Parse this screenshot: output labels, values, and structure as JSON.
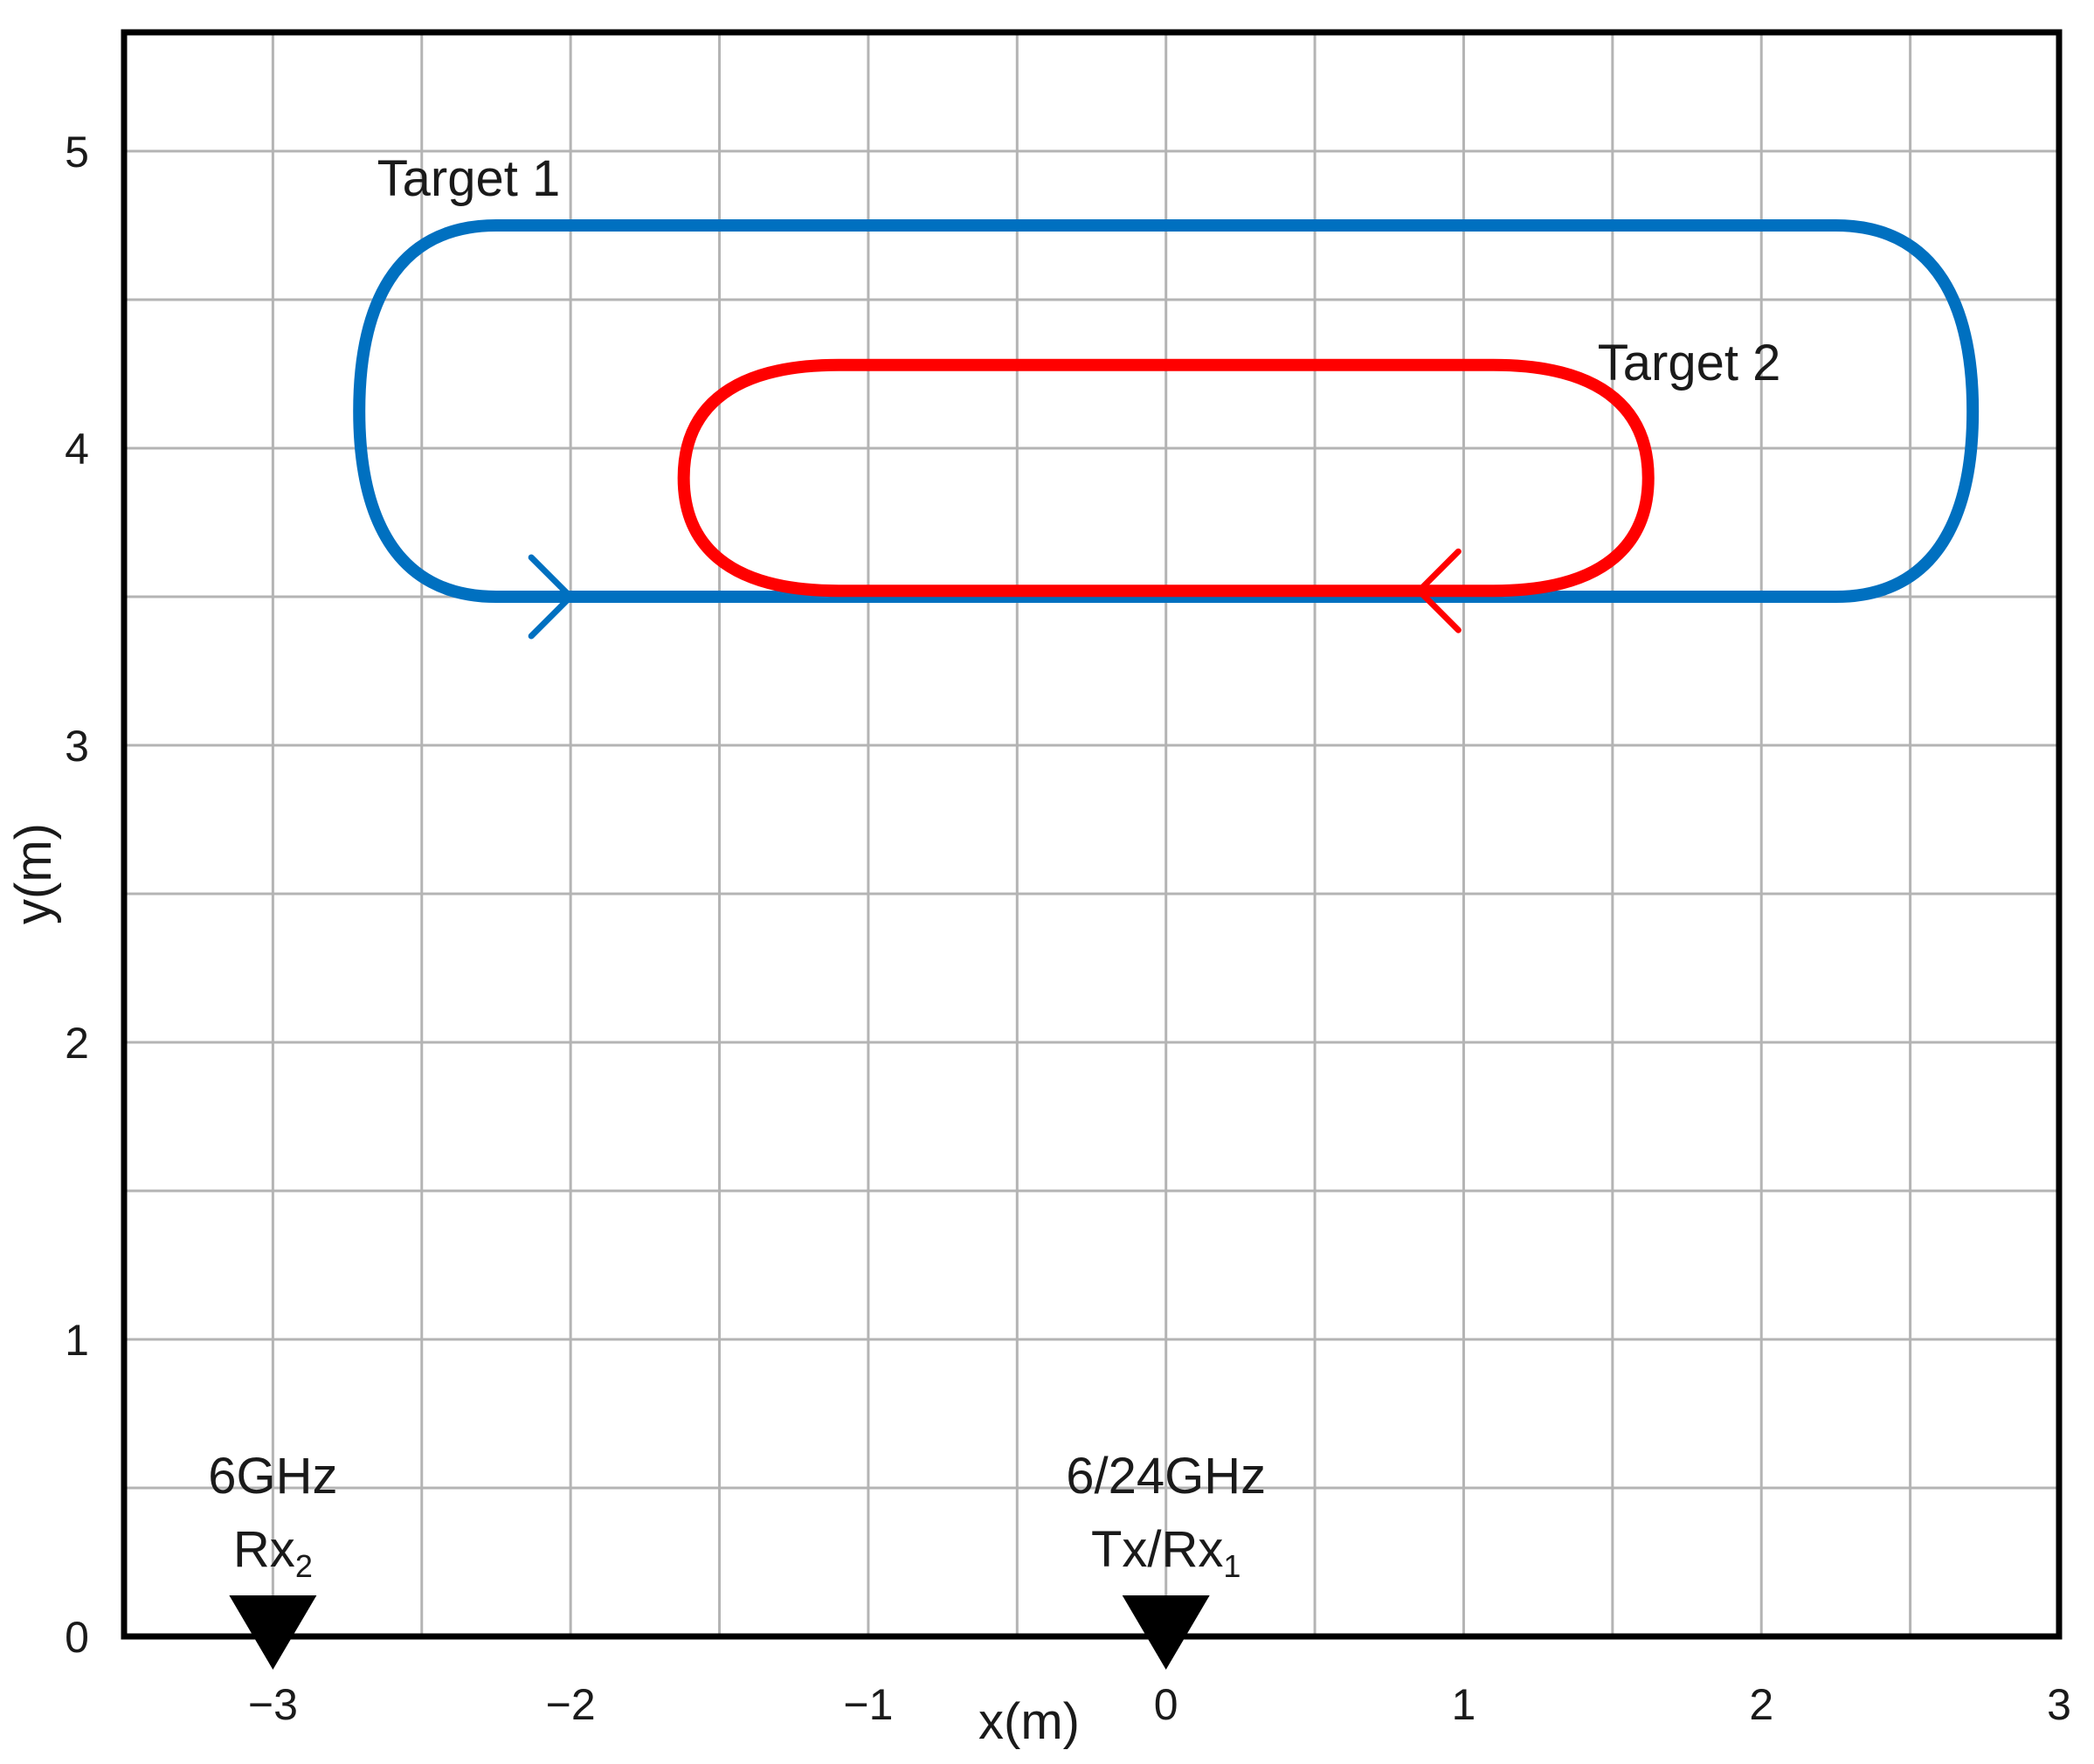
{
  "chart_data": {
    "type": "line",
    "title": "",
    "xlabel": "x(m)",
    "ylabel": "y(m)",
    "xlim": [
      -3.5,
      3
    ],
    "ylim": [
      0,
      5.4
    ],
    "grid": true,
    "x_ticks": [
      -3,
      -2,
      -1,
      0,
      1,
      2,
      3
    ],
    "x_tick_labels": [
      "−3",
      "−2",
      "−1",
      "0",
      "1",
      "2",
      "3"
    ],
    "y_ticks": [
      0,
      1,
      2,
      3,
      4,
      5
    ],
    "y_tick_labels": [
      "0",
      "1",
      "2",
      "3",
      "4",
      "5"
    ],
    "series": [
      {
        "name": "Target 1",
        "color": "#0070c0",
        "path": {
          "x_left": -2.25,
          "x_right": 2.25,
          "y_top": 4.75,
          "y_bottom": 3.5,
          "end_extent_left": 0.46,
          "end_extent_right": 0.46
        },
        "arrow": {
          "x": -2.0,
          "y": 3.5,
          "direction": "right"
        }
      },
      {
        "name": "Target 2",
        "color": "#ff0000",
        "path": {
          "x_left": -1.1,
          "x_right": 1.1,
          "y_top": 4.28,
          "y_bottom": 3.52,
          "end_extent_left": 0.52,
          "end_extent_right": 0.52
        },
        "arrow": {
          "x": 0.85,
          "y": 3.52,
          "direction": "left"
        }
      }
    ],
    "series_labels": [
      {
        "text": "Target 1",
        "x": -2.65,
        "y": 4.85
      },
      {
        "text": "Target 2",
        "x": 1.45,
        "y": 4.23
      }
    ],
    "markers": [
      {
        "x": -3,
        "y": 0,
        "line1": "6GHz",
        "line2_main": "Rx",
        "line2_sub": "2"
      },
      {
        "x": 0,
        "y": 0,
        "line1": "6/24GHz",
        "line2_main": "Tx/Rx",
        "line2_sub": "1"
      }
    ]
  }
}
